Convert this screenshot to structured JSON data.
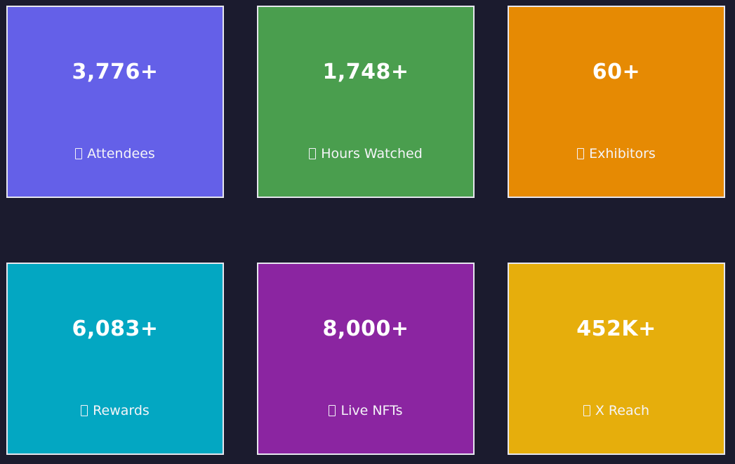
{
  "stats": [
    {
      "value": "3,776+",
      "label": "Attendees",
      "icon": "people-icon",
      "color": "#6460e8"
    },
    {
      "value": "1,748+",
      "label": "Hours Watched",
      "icon": "clock-icon",
      "color": "#4a9e4e"
    },
    {
      "value": "60+",
      "label": "Exhibitors",
      "icon": "booth-icon",
      "color": "#e68a03"
    },
    {
      "value": "6,083+",
      "label": "Rewards",
      "icon": "gift-icon",
      "color": "#03a7c2"
    },
    {
      "value": "8,000+",
      "label": "Live NFTs",
      "icon": "nft-icon",
      "color": "#8b25a1"
    },
    {
      "value": "452K+",
      "label": "X Reach",
      "icon": "megaphone-icon",
      "color": "#e6ae0c"
    }
  ],
  "background_color": "#1b1b2e"
}
